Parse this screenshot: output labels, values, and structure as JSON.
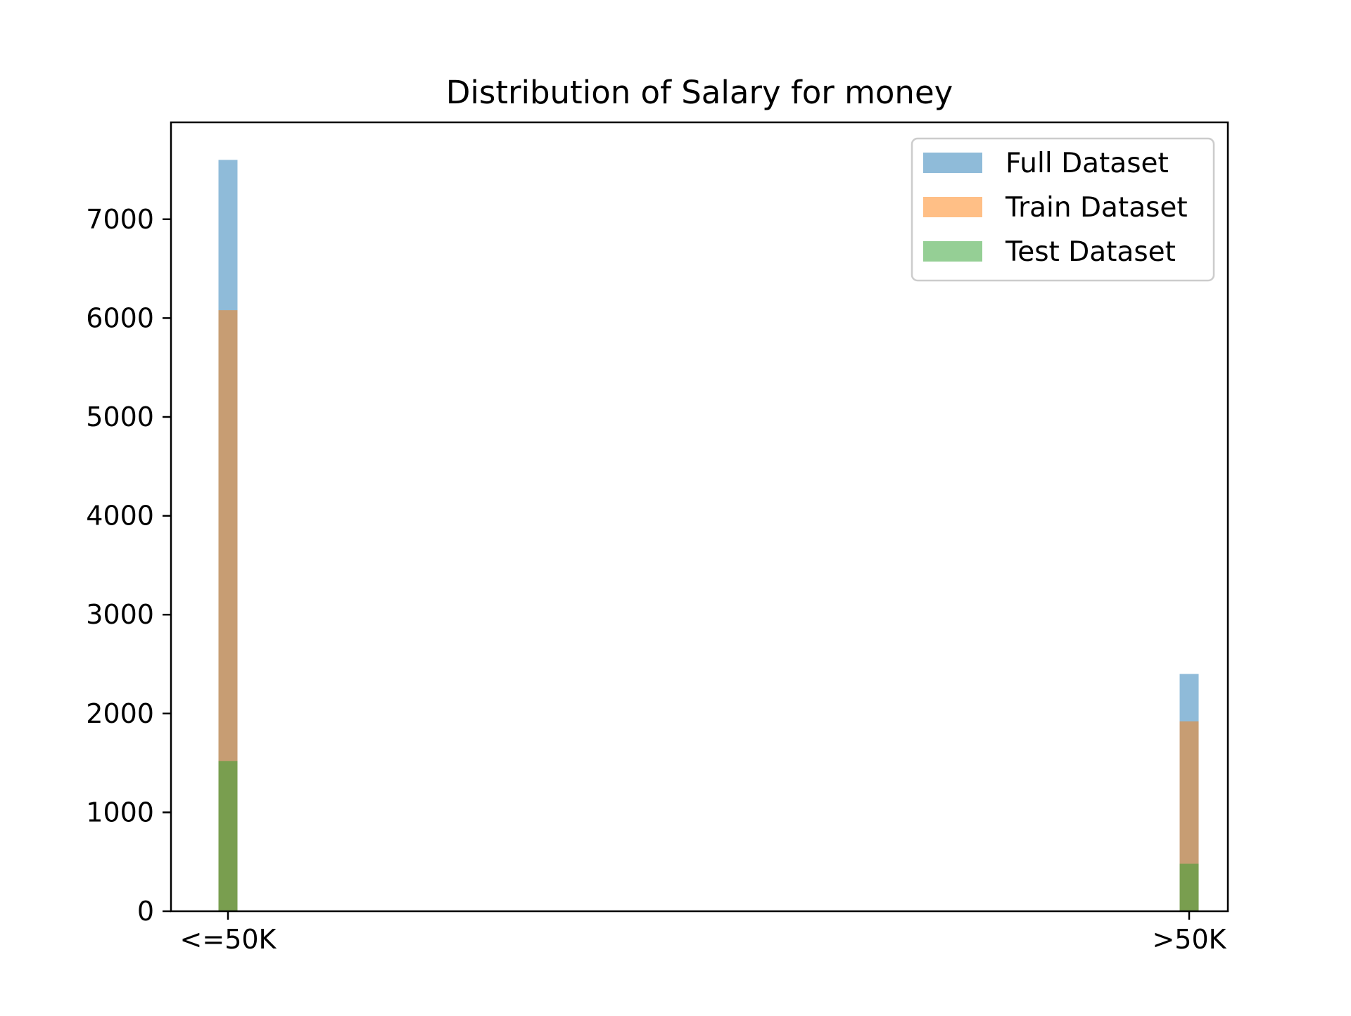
{
  "chart_data": {
    "type": "bar",
    "title": "Distribution of Salary for money",
    "xlabel": "",
    "ylabel": "",
    "categories": [
      "<=50K",
      ">50K"
    ],
    "series": [
      {
        "name": "Full Dataset",
        "values": [
          7600,
          2400
        ],
        "color": "#1f77b4"
      },
      {
        "name": "Train Dataset",
        "values": [
          6080,
          1920
        ],
        "color": "#ff7f0e"
      },
      {
        "name": "Test Dataset",
        "values": [
          1520,
          480
        ],
        "color": "#2ca02c"
      }
    ],
    "bar_opacity": 0.5,
    "ylim": [
      0,
      7980
    ],
    "yticks": [
      0,
      1000,
      2000,
      3000,
      4000,
      5000,
      6000,
      7000
    ],
    "grid": false,
    "legend_position": "top-right"
  }
}
